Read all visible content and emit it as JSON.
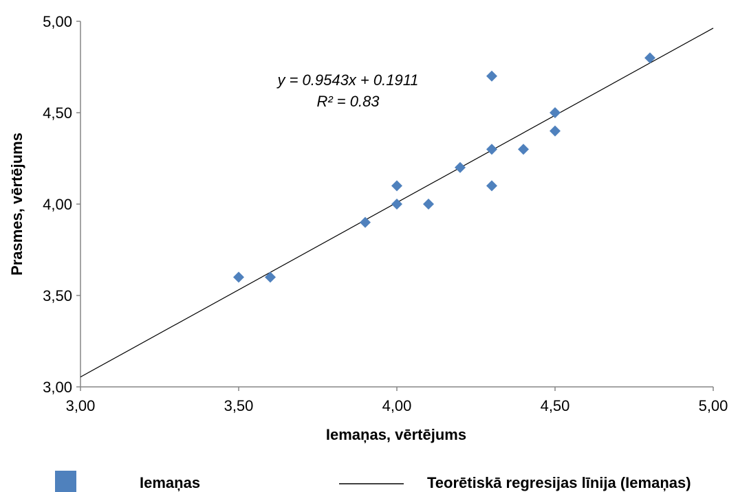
{
  "chart_data": {
    "type": "scatter",
    "xlabel": "Iemaņas, vērtējums",
    "ylabel": "Prasmes, vērtējums",
    "xlim": [
      3.0,
      5.0
    ],
    "ylim": [
      3.0,
      5.0
    ],
    "x_ticks": [
      "3,00",
      "3,50",
      "4,00",
      "4,50",
      "5,00"
    ],
    "y_ticks": [
      "3,00",
      "3,50",
      "4,00",
      "4,50",
      "5,00"
    ],
    "grid": false,
    "legend_position": "bottom",
    "series": [
      {
        "name": "Iemaņas",
        "kind": "scatter",
        "marker": "diamond",
        "color": "#4f81bd",
        "points": [
          {
            "x": 3.5,
            "y": 3.6
          },
          {
            "x": 3.6,
            "y": 3.6
          },
          {
            "x": 3.9,
            "y": 3.9
          },
          {
            "x": 4.0,
            "y": 4.0
          },
          {
            "x": 4.0,
            "y": 4.1
          },
          {
            "x": 4.1,
            "y": 4.0
          },
          {
            "x": 4.2,
            "y": 4.2
          },
          {
            "x": 4.3,
            "y": 4.1
          },
          {
            "x": 4.3,
            "y": 4.3
          },
          {
            "x": 4.3,
            "y": 4.7
          },
          {
            "x": 4.4,
            "y": 4.3
          },
          {
            "x": 4.5,
            "y": 4.4
          },
          {
            "x": 4.5,
            "y": 4.5
          },
          {
            "x": 4.8,
            "y": 4.8
          }
        ]
      },
      {
        "name": "Teorētiskā regresijas līnija (Iemaņas)",
        "kind": "line",
        "color": "#000000",
        "slope": 0.9543,
        "intercept": 0.1911
      }
    ],
    "annotations": {
      "equation": "y = 0.9543x + 0.1911",
      "r_squared": "R² = 0.83"
    }
  }
}
